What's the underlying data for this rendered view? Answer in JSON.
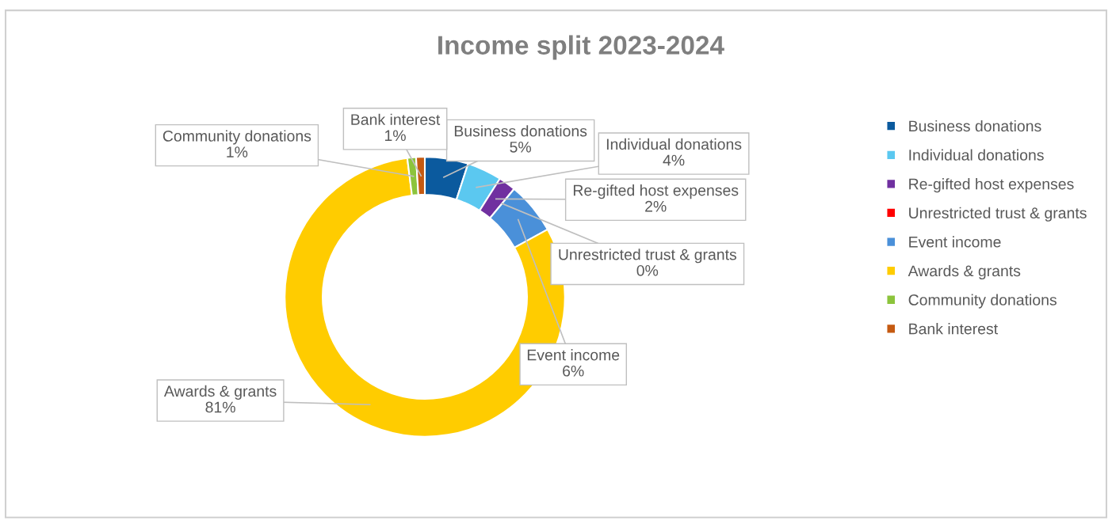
{
  "chart_data": {
    "type": "donut",
    "title": "Income split 2023-2024",
    "categories": [
      "Business donations",
      "Individual donations",
      "Re-gifted host expenses",
      "Unrestricted trust & grants",
      "Event income",
      "Awards & grants",
      "Community donations",
      "Bank interest"
    ],
    "values": [
      5,
      4,
      2,
      0,
      6,
      81,
      1,
      1
    ],
    "colors": [
      "#0b5a9e",
      "#5bc8f0",
      "#7030a0",
      "#ff0000",
      "#4a90d9",
      "#ffcc00",
      "#8cc43c",
      "#c55a11"
    ],
    "value_labels": [
      "5%",
      "4%",
      "2%",
      "0%",
      "6%",
      "81%",
      "1%",
      "1%"
    ],
    "legend": "right"
  }
}
